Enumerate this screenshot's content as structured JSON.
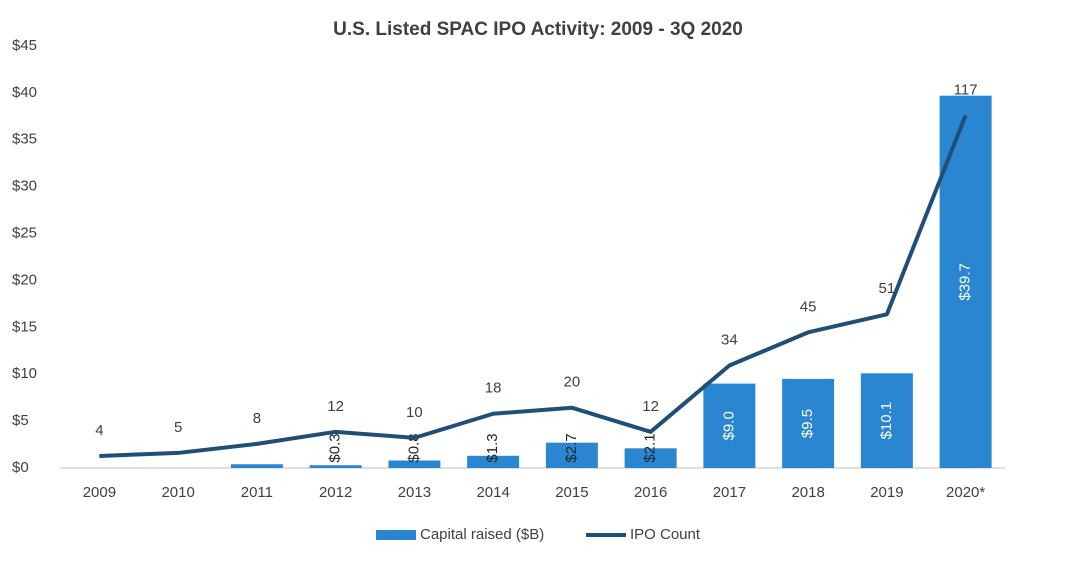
{
  "chart_data": {
    "type": "bar_line",
    "title": "U.S. Listed SPAC IPO Activity: 2009 - 3Q 2020",
    "categories": [
      "2009",
      "2010",
      "2011",
      "2012",
      "2013",
      "2014",
      "2015",
      "2016",
      "2017",
      "2018",
      "2019",
      "2020*"
    ],
    "series": [
      {
        "name": "Capital raised ($B)",
        "type": "bar",
        "color": "#2b86d1",
        "values": [
          0,
          0,
          0.4,
          0.3,
          0.8,
          1.3,
          2.7,
          2.1,
          9.0,
          9.5,
          10.1,
          39.7
        ],
        "value_labels": [
          null,
          null,
          null,
          "$0.3",
          "$0.8",
          "$1.3",
          "$2.7",
          "$2.1",
          "$9.0",
          "$9.5",
          "$10.1",
          "$39.7"
        ]
      },
      {
        "name": "IPO Count",
        "type": "line",
        "color": "#1f4e79",
        "axis": "y2",
        "values": [
          4,
          5,
          8,
          12,
          10,
          18,
          20,
          12,
          34,
          45,
          51,
          117
        ]
      }
    ],
    "ylim": [
      0,
      45
    ],
    "yticks": [
      {
        "value": 0,
        "label": "$0"
      },
      {
        "value": 5,
        "label": "$5"
      },
      {
        "value": 10,
        "label": "$10"
      },
      {
        "value": 15,
        "label": "$15"
      },
      {
        "value": 20,
        "label": "$20"
      },
      {
        "value": 25,
        "label": "$25"
      },
      {
        "value": 30,
        "label": "$30"
      },
      {
        "value": 35,
        "label": "$35"
      },
      {
        "value": 40,
        "label": "$40"
      },
      {
        "value": 45,
        "label": "$45"
      }
    ],
    "y2lim": [
      0,
      140
    ],
    "grid": false,
    "legend": "bottom"
  }
}
